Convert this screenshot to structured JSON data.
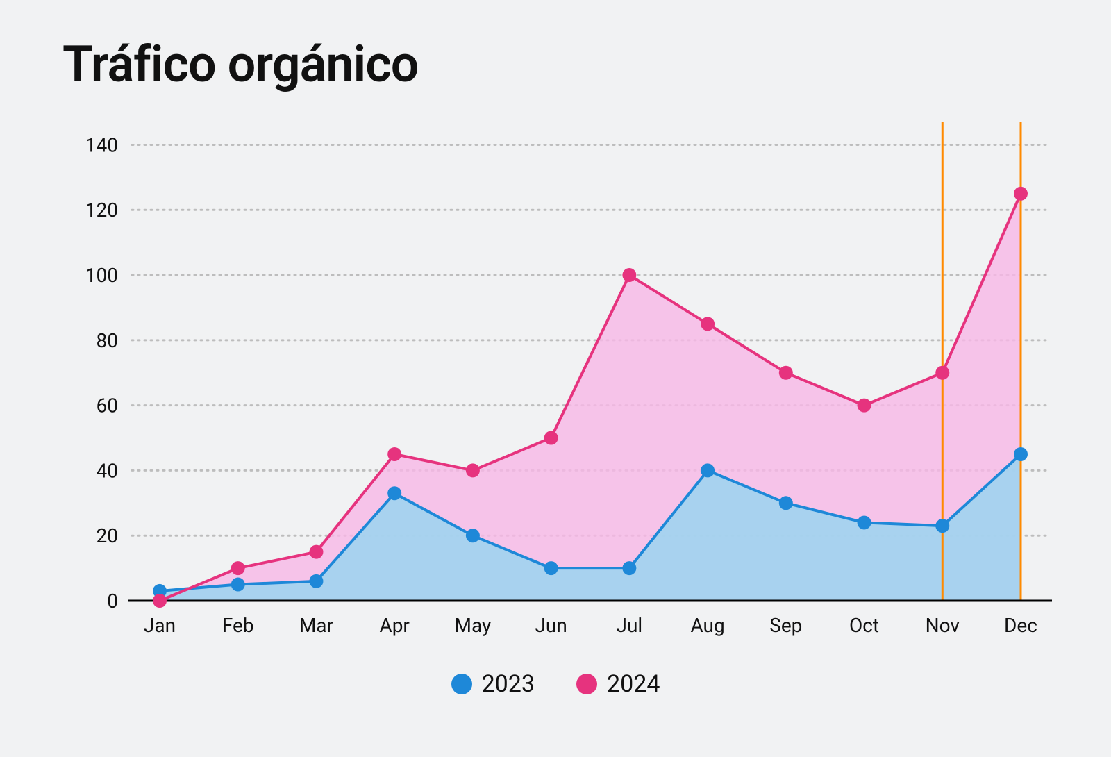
{
  "chart": {
    "title": "Tráfico orgánico",
    "type": "area",
    "background_color": "#f1f2f3",
    "title_fontsize": 72,
    "axis_label_fontsize": 28,
    "legend_fontsize": 34,
    "categories": [
      "Jan",
      "Feb",
      "Mar",
      "Apr",
      "May",
      "Jun",
      "Jul",
      "Aug",
      "Sep",
      "Oct",
      "Nov",
      "Dec"
    ],
    "ylim": [
      0,
      145
    ],
    "ytick_step": 20,
    "yticks": [
      0,
      20,
      40,
      60,
      80,
      100,
      120,
      140
    ],
    "grid_color": "#bdbdbd",
    "grid_dash": "2,7",
    "axis_line_color": "#000000",
    "axis_line_width": 3,
    "marker_radius": 10,
    "marker_lines": {
      "color": "#ff8a00",
      "width": 3,
      "at_categories": [
        "Nov",
        "Dec"
      ]
    },
    "series": [
      {
        "name": "2023",
        "stroke": "#1e88d8",
        "fill": "#9ad5f0",
        "fill_opacity": 0.85,
        "stroke_width": 4,
        "values": [
          3,
          5,
          6,
          33,
          20,
          10,
          10,
          40,
          30,
          24,
          23,
          45
        ]
      },
      {
        "name": "2024",
        "stroke": "#e6337e",
        "fill": "#f7b6e6",
        "fill_opacity": 0.8,
        "stroke_width": 4,
        "values": [
          0,
          10,
          15,
          45,
          40,
          50,
          100,
          85,
          70,
          60,
          70,
          125
        ]
      }
    ],
    "legend": [
      {
        "label": "2023",
        "color": "#1e88d8"
      },
      {
        "label": "2024",
        "color": "#e6337e"
      }
    ]
  }
}
